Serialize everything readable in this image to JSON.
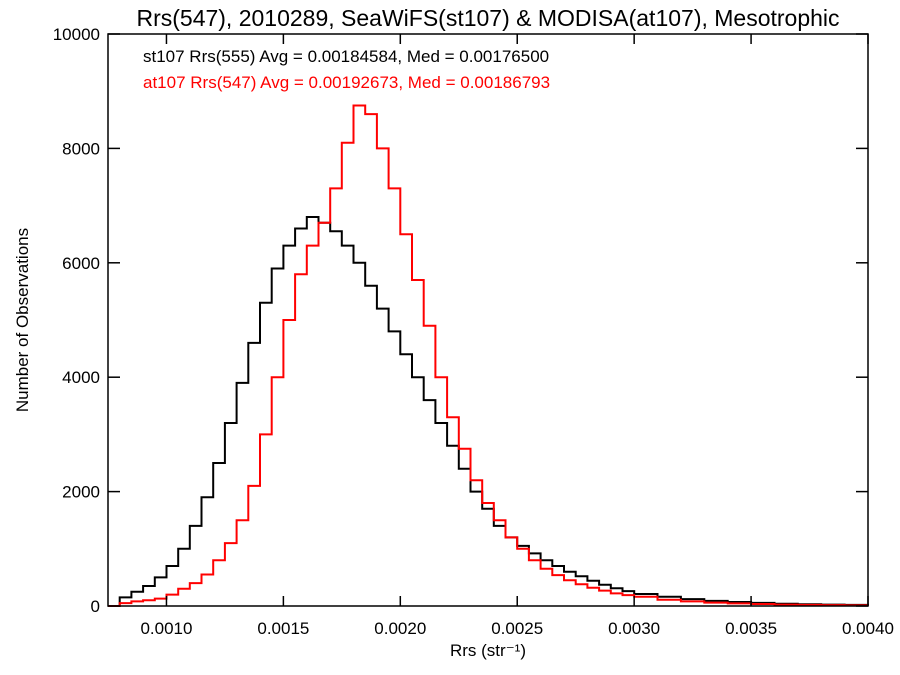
{
  "chart_data": {
    "type": "line",
    "step": true,
    "title": "Rrs(547), 2010289, SeaWiFS(st107) & MODISA(at107), Mesotrophic",
    "xlabel": "Rrs (str⁻¹)",
    "ylabel": "Number of Observations",
    "xlim": [
      0.00075,
      0.004
    ],
    "ylim": [
      0,
      10000
    ],
    "xticks": [
      0.001,
      0.0015,
      0.002,
      0.0025,
      0.003,
      0.0035,
      0.004
    ],
    "xtick_labels": [
      "0.0010",
      "0.0015",
      "0.0020",
      "0.0025",
      "0.0030",
      "0.0035",
      "0.0040"
    ],
    "yticks": [
      0,
      2000,
      4000,
      6000,
      8000,
      10000
    ],
    "ytick_labels": [
      "0",
      "2000",
      "4000",
      "6000",
      "8000",
      "10000"
    ],
    "legend_position": "top-left",
    "series": [
      {
        "name": "st107 Rrs(555) Avg = 0.00184584, Med = 0.00176500",
        "color": "#000000",
        "x": [
          0.00075,
          0.0008,
          0.00085,
          0.0009,
          0.00095,
          0.001,
          0.00105,
          0.0011,
          0.00115,
          0.0012,
          0.00125,
          0.0013,
          0.00135,
          0.0014,
          0.00145,
          0.0015,
          0.00155,
          0.0016,
          0.00165,
          0.0017,
          0.00175,
          0.0018,
          0.00185,
          0.0019,
          0.00195,
          0.002,
          0.00205,
          0.0021,
          0.00215,
          0.0022,
          0.00225,
          0.0023,
          0.00235,
          0.0024,
          0.00245,
          0.0025,
          0.00255,
          0.0026,
          0.00265,
          0.0027,
          0.00275,
          0.0028,
          0.00285,
          0.0029,
          0.00295,
          0.003,
          0.0031,
          0.0032,
          0.0033,
          0.0034,
          0.0035,
          0.0036,
          0.0037,
          0.0038,
          0.0039,
          0.004
        ],
        "y": [
          0,
          150,
          250,
          350,
          500,
          700,
          1000,
          1400,
          1900,
          2500,
          3200,
          3900,
          4600,
          5300,
          5900,
          6300,
          6600,
          6800,
          6700,
          6550,
          6300,
          6000,
          5600,
          5200,
          4800,
          4400,
          4000,
          3600,
          3200,
          2800,
          2400,
          2000,
          1700,
          1400,
          1200,
          1050,
          920,
          800,
          700,
          600,
          520,
          440,
          370,
          310,
          260,
          210,
          160,
          120,
          90,
          70,
          55,
          40,
          30,
          25,
          20,
          15
        ]
      },
      {
        "name": "at107 Rrs(547) Avg = 0.00192673, Med = 0.00186793",
        "color": "#ff0000",
        "x": [
          0.00075,
          0.0008,
          0.00085,
          0.0009,
          0.00095,
          0.001,
          0.00105,
          0.0011,
          0.00115,
          0.0012,
          0.00125,
          0.0013,
          0.00135,
          0.0014,
          0.00145,
          0.0015,
          0.00155,
          0.0016,
          0.00165,
          0.0017,
          0.00175,
          0.0018,
          0.00185,
          0.0019,
          0.00195,
          0.002,
          0.00205,
          0.0021,
          0.00215,
          0.0022,
          0.00225,
          0.0023,
          0.00235,
          0.0024,
          0.00245,
          0.0025,
          0.00255,
          0.0026,
          0.00265,
          0.0027,
          0.00275,
          0.0028,
          0.00285,
          0.0029,
          0.00295,
          0.003,
          0.0031,
          0.0032,
          0.0033,
          0.0034,
          0.0035,
          0.0036,
          0.0037,
          0.0038,
          0.0039,
          0.004
        ],
        "y": [
          0,
          50,
          80,
          100,
          130,
          200,
          300,
          400,
          550,
          800,
          1100,
          1500,
          2100,
          3000,
          4000,
          5000,
          5800,
          6300,
          6700,
          7300,
          8100,
          8750,
          8600,
          8000,
          7300,
          6500,
          5700,
          4900,
          4000,
          3300,
          2750,
          2200,
          1800,
          1500,
          1200,
          1000,
          800,
          650,
          540,
          450,
          380,
          320,
          270,
          220,
          190,
          160,
          110,
          80,
          60,
          45,
          35,
          25,
          20,
          15,
          10,
          5
        ]
      }
    ]
  }
}
